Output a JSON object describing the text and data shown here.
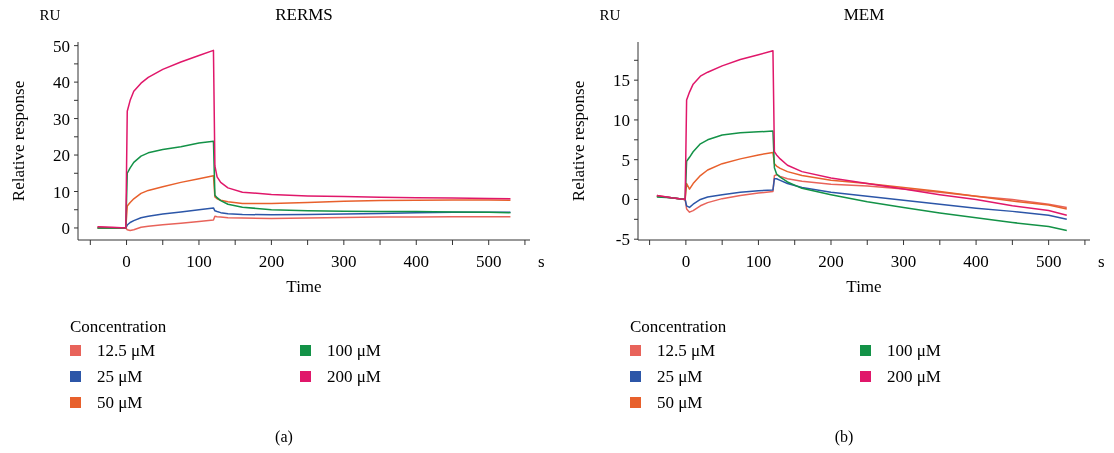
{
  "chart_data": [
    {
      "type": "line",
      "title": "RERMS",
      "xlabel": "Time",
      "ylabel": "Relative response",
      "legend_title": "Concentration",
      "legend": "bottom",
      "annotations": [
        "RU",
        "s",
        "(a)"
      ],
      "x": [
        -40,
        -20,
        -1,
        1,
        5,
        10,
        20,
        30,
        50,
        75,
        100,
        120,
        122,
        125,
        130,
        140,
        160,
        200,
        250,
        300,
        350,
        400,
        450,
        500,
        530
      ],
      "xlim": [
        -67,
        557
      ],
      "xticks": [
        {
          "value": -50,
          "label": null
        },
        0,
        {
          "value": 50,
          "label": null
        },
        100,
        {
          "value": 150,
          "label": null
        },
        200,
        {
          "value": 250,
          "label": null
        },
        300,
        {
          "value": 350,
          "label": null
        },
        400,
        {
          "value": 450,
          "label": null
        },
        500,
        {
          "value": 550,
          "label": null
        }
      ],
      "ylim": [
        -3.3,
        51
      ],
      "yticks": [
        0,
        {
          "value": 5,
          "label": null
        },
        10,
        {
          "value": 15,
          "label": null
        },
        20,
        {
          "value": 25,
          "label": null
        },
        30,
        {
          "value": 35,
          "label": null
        },
        40,
        {
          "value": 45,
          "label": null
        },
        50
      ],
      "series": [
        {
          "name": "12.5 μM",
          "color": "#e8635a",
          "values": [
            0.3,
            0,
            0,
            -0.5,
            -0.7,
            -0.5,
            0.2,
            0.5,
            0.9,
            1.3,
            1.8,
            2.2,
            3.2,
            3.1,
            3.0,
            2.8,
            2.7,
            2.6,
            2.7,
            2.9,
            3.0,
            3.0,
            3.1,
            3.1,
            3.1
          ]
        },
        {
          "name": "25 μM",
          "color": "#2c56a8",
          "values": [
            0,
            0,
            0,
            0.8,
            1.5,
            2,
            2.8,
            3.2,
            3.8,
            4.4,
            5.0,
            5.5,
            4.7,
            4.5,
            4.2,
            3.9,
            3.7,
            3.6,
            3.7,
            3.8,
            4.0,
            4.2,
            4.3,
            4.3,
            4.3
          ]
        },
        {
          "name": "50 μM",
          "color": "#e8602c",
          "values": [
            0,
            0,
            0,
            6,
            7,
            8,
            9.5,
            10.3,
            11.3,
            12.5,
            13.5,
            14.3,
            8.5,
            8.0,
            7.6,
            7.2,
            6.7,
            6.7,
            7.0,
            7.3,
            7.5,
            7.6,
            7.7,
            7.7,
            7.6
          ]
        },
        {
          "name": "100 μM",
          "color": "#139247",
          "values": [
            0,
            0,
            0,
            15,
            16.5,
            18,
            19.7,
            20.6,
            21.5,
            22.3,
            23.3,
            23.8,
            9,
            8.3,
            7.5,
            6.5,
            5.7,
            5.0,
            4.7,
            4.6,
            4.5,
            4.5,
            4.4,
            4.3,
            4.2
          ]
        },
        {
          "name": "200 μM",
          "color": "#e0176a",
          "values": [
            0.3,
            0.2,
            0,
            32,
            35,
            37.5,
            39.7,
            41.3,
            43.5,
            45.5,
            47.3,
            48.7,
            17,
            14,
            12.5,
            11,
            9.8,
            9.2,
            8.8,
            8.6,
            8.4,
            8.3,
            8.2,
            8.1,
            8.0
          ]
        }
      ]
    },
    {
      "type": "line",
      "title": "MEM",
      "xlabel": "Time",
      "ylabel": "Relative response",
      "legend_title": "Concentration",
      "legend": "bottom",
      "annotations": [
        "RU",
        "s",
        "(b)"
      ],
      "x": [
        -40,
        -20,
        -1,
        1,
        5,
        10,
        20,
        30,
        50,
        75,
        100,
        120,
        122,
        125,
        130,
        140,
        160,
        200,
        250,
        300,
        350,
        400,
        450,
        500,
        525
      ],
      "xlim": [
        -66,
        557
      ],
      "xticks": [
        {
          "value": -50,
          "label": null
        },
        0,
        {
          "value": 50,
          "label": null
        },
        100,
        {
          "value": 150,
          "label": null
        },
        200,
        {
          "value": 250,
          "label": null
        },
        300,
        {
          "value": 350,
          "label": null
        },
        400,
        {
          "value": 450,
          "label": null
        },
        500,
        {
          "value": 550,
          "label": null
        }
      ],
      "ylim": [
        -5.1,
        19.8
      ],
      "yticks": [
        {
          "value": -5,
          "label": "-5"
        },
        {
          "value": -2.5,
          "label": null
        },
        0,
        {
          "value": 2.5,
          "label": null
        },
        5,
        {
          "value": 7.5,
          "label": null
        },
        10,
        {
          "value": 12.5,
          "label": null
        },
        15,
        {
          "value": 17.5,
          "label": null
        }
      ],
      "series": [
        {
          "name": "12.5 μM",
          "color": "#e8635a",
          "values": [
            0.5,
            0.2,
            0,
            -1.2,
            -1.6,
            -1.4,
            -0.8,
            -0.4,
            0.1,
            0.5,
            0.8,
            1.0,
            3.0,
            3.1,
            2.9,
            2.6,
            2.3,
            1.9,
            1.7,
            1.3,
            0.9,
            0.4,
            0,
            -0.6,
            -1.0
          ]
        },
        {
          "name": "25 μM",
          "color": "#2c56a8",
          "values": [
            0.4,
            0.2,
            0,
            -0.8,
            -1.0,
            -0.6,
            0,
            0.3,
            0.6,
            0.9,
            1.1,
            1.2,
            2.6,
            2.6,
            2.4,
            2.0,
            1.5,
            0.9,
            0.4,
            -0.1,
            -0.6,
            -1.1,
            -1.5,
            -2.0,
            -2.5
          ]
        },
        {
          "name": "50 μM",
          "color": "#e8602c",
          "values": [
            0.4,
            0.2,
            0,
            2,
            1.3,
            2,
            3,
            3.7,
            4.5,
            5.1,
            5.6,
            5.9,
            4.5,
            4.2,
            3.9,
            3.5,
            3.0,
            2.4,
            2.0,
            1.5,
            1.0,
            0.4,
            -0.2,
            -0.7,
            -1.2
          ]
        },
        {
          "name": "100 μM",
          "color": "#139247",
          "values": [
            0.3,
            0.2,
            0,
            4.8,
            5.3,
            6,
            7,
            7.5,
            8.1,
            8.4,
            8.5,
            8.6,
            4,
            3.2,
            2.8,
            2.2,
            1.4,
            0.6,
            -0.3,
            -1.0,
            -1.7,
            -2.3,
            -2.9,
            -3.4,
            -3.9
          ]
        },
        {
          "name": "200 μM",
          "color": "#e0176a",
          "values": [
            0.5,
            0.2,
            0,
            12.5,
            13.5,
            14.5,
            15.5,
            16,
            16.8,
            17.6,
            18.2,
            18.7,
            6,
            5.6,
            5.1,
            4.3,
            3.5,
            2.7,
            2.0,
            1.3,
            0.6,
            0,
            -0.8,
            -1.4,
            -2.0
          ]
        }
      ]
    }
  ]
}
